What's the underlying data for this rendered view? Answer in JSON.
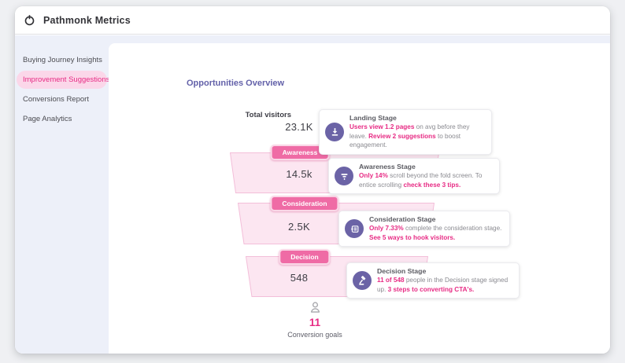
{
  "header": {
    "title": "Pathmonk Metrics",
    "logo_icon": "pathmonk-logo-icon"
  },
  "sidebar": {
    "items": [
      {
        "label": "Buying Journey Insights",
        "active": false
      },
      {
        "label": "Improvement Suggestions",
        "active": true
      },
      {
        "label": "Conversions Report",
        "active": false
      },
      {
        "label": "Page Analytics",
        "active": false
      }
    ]
  },
  "main": {
    "title": "Opportunities Overview",
    "funnel": {
      "total_label": "Total visitors",
      "total_value": "23.1K",
      "stages": [
        {
          "badge": "Awareness",
          "value": "14.5k"
        },
        {
          "badge": "Consideration",
          "value": "2.5K"
        },
        {
          "badge": "Decision",
          "value": "548"
        }
      ]
    },
    "cards": [
      {
        "icon": "download-icon",
        "title": "Landing Stage",
        "segments": [
          {
            "text": "Users view 1.2 pages",
            "accent": true
          },
          {
            "text": " on avg before they leave. ",
            "accent": false
          },
          {
            "text": "Review 2 suggestions",
            "accent": true
          },
          {
            "text": " to boost engagement.",
            "accent": false
          }
        ]
      },
      {
        "icon": "funnel-icon",
        "title": "Awareness Stage",
        "segments": [
          {
            "text": "Only 14%",
            "accent": true
          },
          {
            "text": " scroll beyond the fold screen. To entice scrolling ",
            "accent": false
          },
          {
            "text": "check these 3 tips.",
            "accent": true
          }
        ]
      },
      {
        "icon": "list-icon",
        "title": "Consideration Stage",
        "segments": [
          {
            "text": "Only 7.33%",
            "accent": true
          },
          {
            "text": " complete the consideration stage. ",
            "accent": false
          },
          {
            "text": "See 5 ways to hook visitors.",
            "accent": true
          }
        ]
      },
      {
        "icon": "gavel-icon",
        "title": "Decision Stage",
        "segments": [
          {
            "text": "11 of 548",
            "accent": true
          },
          {
            "text": " people in the Decision stage signed up. ",
            "accent": false
          },
          {
            "text": "3 steps to converting CTA's.",
            "accent": true
          }
        ]
      }
    ],
    "footer": {
      "value": "11",
      "label": "Conversion goals",
      "icon": "person-icon"
    }
  },
  "colors": {
    "accent_pink": "#e72b84",
    "badge_pink": "#ef6ba5",
    "funnel_fill": "#fce6f1",
    "funnel_border": "#f3bed9",
    "icon_purple": "#6b63a6",
    "title_indigo": "#6361a9",
    "sidebar_bg": "#edf0f9",
    "active_pill_bg": "#fbd7e9"
  }
}
